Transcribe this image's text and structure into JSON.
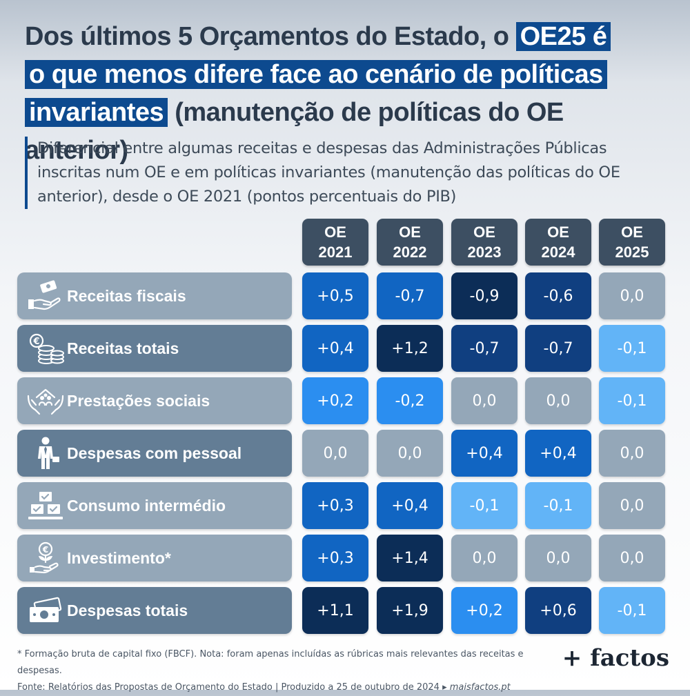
{
  "title": {
    "part1": "Dos últimos 5 Orçamentos do Estado, o ",
    "hl1": "OE25 é",
    "hl2": "o que menos difere face ao cenário de políticas",
    "hl3": "invariantes",
    "part2": " (manutenção de políticas do OE anterior)"
  },
  "subtitle": "Diferencial entre algumas receitas e despesas das Administrações Públicas inscritas num OE e em políticas invariantes (manutenção das políticas do OE anterior), desde o OE 2021 (pontos percentuais do PIB)",
  "colors": {
    "darkest": "#0c2d57",
    "dark": "#103f80",
    "medium": "#1165c2",
    "bright": "#2b8ef0",
    "light": "#62b4f7",
    "neutral": "#94a7b8",
    "header": "#3d4f62",
    "row_light": "#94a7b8",
    "row_dark": "#637d95"
  },
  "chart_data": {
    "type": "table",
    "columns": [
      {
        "line1": "OE",
        "line2": "2021"
      },
      {
        "line1": "OE",
        "line2": "2022"
      },
      {
        "line1": "OE",
        "line2": "2023"
      },
      {
        "line1": "OE",
        "line2": "2024"
      },
      {
        "line1": "OE",
        "line2": "2025"
      }
    ],
    "rows": [
      {
        "label": "Receitas fiscais",
        "icon": "money-hand-icon",
        "style": "light",
        "values": [
          "+0,5",
          "-0,7",
          "-0,9",
          "-0,6",
          "0,0"
        ],
        "tones": [
          "medium",
          "medium",
          "darkest",
          "dark",
          "neutral"
        ]
      },
      {
        "label": "Receitas totais",
        "icon": "euro-coins-icon",
        "style": "dark",
        "values": [
          "+0,4",
          "+1,2",
          "-0,7",
          "-0,7",
          "-0,1"
        ],
        "tones": [
          "medium",
          "darkest",
          "dark",
          "dark",
          "light"
        ]
      },
      {
        "label": "Prestações sociais",
        "icon": "family-hands-icon",
        "style": "light",
        "values": [
          "+0,2",
          "-0,2",
          "0,0",
          "0,0",
          "-0,1"
        ],
        "tones": [
          "bright",
          "bright",
          "neutral",
          "neutral",
          "light"
        ]
      },
      {
        "label": "Despesas com pessoal",
        "icon": "worker-icon",
        "style": "dark",
        "values": [
          "0,0",
          "0,0",
          "+0,4",
          "+0,4",
          "0,0"
        ],
        "tones": [
          "neutral",
          "neutral",
          "medium",
          "medium",
          "neutral"
        ]
      },
      {
        "label": "Consumo intermédio",
        "icon": "boxes-icon",
        "style": "light",
        "values": [
          "+0,3",
          "+0,4",
          "-0,1",
          "-0,1",
          "0,0"
        ],
        "tones": [
          "medium",
          "medium",
          "light",
          "light",
          "neutral"
        ]
      },
      {
        "label": "Investimento*",
        "icon": "investment-plant-icon",
        "style": "light",
        "values": [
          "+0,3",
          "+1,4",
          "0,0",
          "0,0",
          "0,0"
        ],
        "tones": [
          "medium",
          "darkest",
          "neutral",
          "neutral",
          "neutral"
        ]
      },
      {
        "label": "Despesas totais",
        "icon": "banknotes-icon",
        "style": "dark",
        "values": [
          "+1,1",
          "+1,9",
          "+0,2",
          "+0,6",
          "-0,1"
        ],
        "tones": [
          "darkest",
          "darkest",
          "bright",
          "dark",
          "light"
        ]
      }
    ]
  },
  "footnote": {
    "note": "* Formação bruta de capital fixo (FBCF). Nota: foram apenas incluídas as rúbricas mais relevantes das receitas e despesas.",
    "source": "Fonte: Relatórios das Propostas de Orçamento do Estado | Produzido a 25 de outubro de 2024 ▸ ",
    "site": "maisfactos.pt"
  },
  "logo": "+ factos"
}
